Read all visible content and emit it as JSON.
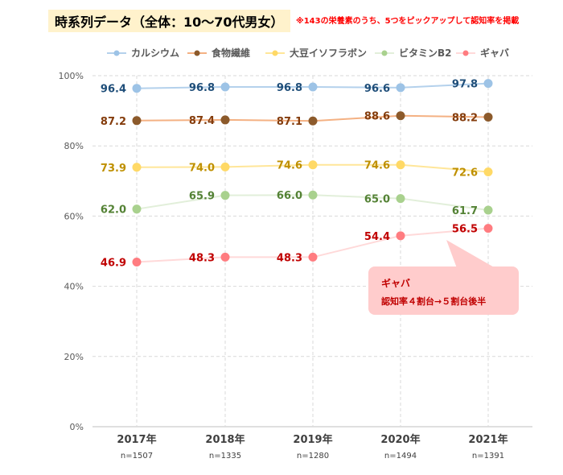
{
  "title": "時系列データ（全体：10〜70代男女）",
  "note": "※143の栄養素のうち、5つをピックアップして認知率を掲載",
  "chart_data": {
    "type": "line",
    "categories": [
      "2017年",
      "2018年",
      "2019年",
      "2020年",
      "2021年"
    ],
    "sample_sizes": [
      "n=1507",
      "n=1335",
      "n=1280",
      "n=1494",
      "n=1391"
    ],
    "ylim": [
      0,
      100
    ],
    "yticks": [
      "0%",
      "20%",
      "40%",
      "60%",
      "80%",
      "100%"
    ],
    "grid": true,
    "legend_position": "top",
    "series": [
      {
        "name": "カルシウム",
        "values": [
          96.4,
          96.8,
          96.8,
          96.6,
          97.8
        ],
        "marker": "#9dc3e6",
        "line": "#b4d1ec",
        "label_color": "#1f4e79"
      },
      {
        "name": "食物繊維",
        "values": [
          87.2,
          87.4,
          87.1,
          88.6,
          88.2
        ],
        "marker": "#8c5a2b",
        "line": "#f4b183",
        "label_color": "#843c0c"
      },
      {
        "name": "大豆イソフラボン",
        "values": [
          73.9,
          74.0,
          74.6,
          74.6,
          72.6
        ],
        "marker": "#ffd966",
        "line": "#ffe699",
        "label_color": "#bf9000"
      },
      {
        "name": "ビタミンB2",
        "values": [
          62.0,
          65.9,
          66.0,
          65.0,
          61.7
        ],
        "marker": "#a9d18e",
        "line": "#e2efda",
        "label_color": "#548235"
      },
      {
        "name": "ギャバ",
        "values": [
          46.9,
          48.3,
          48.3,
          54.4,
          56.5
        ],
        "marker": "#ff7c80",
        "line": "#ffd9d9",
        "label_color": "#c00000"
      }
    ],
    "annotation": {
      "title": "ギャバ",
      "text": "認知率４割台→５割台後半",
      "bg": "#ffcccc",
      "color": "#c00000"
    }
  }
}
